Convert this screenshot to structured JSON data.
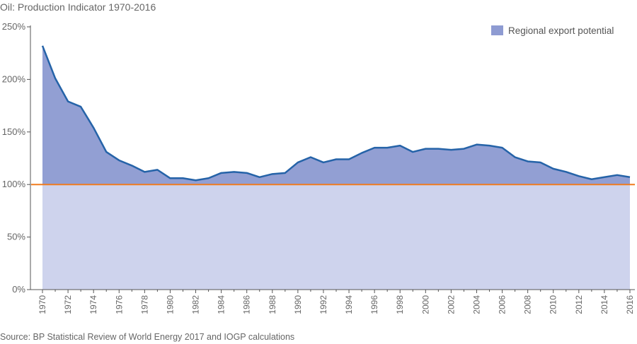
{
  "header": {
    "title": "Oil: Production Indicator 1970-2016"
  },
  "footer": {
    "source": "Source: BP Statistical Review of World Energy 2017 and IOGP calculations"
  },
  "colors": {
    "area_fill": "#929fd3",
    "base_fill": "#ced3ed",
    "line": "#2563a8",
    "threshold": "#f07c1e",
    "axis": "#555555",
    "legend_swatch": "#8e9bd2"
  },
  "chart_data": {
    "type": "area",
    "title": "Oil: Production Indicator 1970-2016",
    "xlabel": "",
    "ylabel": "",
    "x": [
      1970,
      1971,
      1972,
      1973,
      1974,
      1975,
      1976,
      1977,
      1978,
      1979,
      1980,
      1981,
      1982,
      1983,
      1984,
      1985,
      1986,
      1987,
      1988,
      1989,
      1990,
      1991,
      1992,
      1993,
      1994,
      1995,
      1996,
      1997,
      1998,
      1999,
      2000,
      2001,
      2002,
      2003,
      2004,
      2005,
      2006,
      2007,
      2008,
      2009,
      2010,
      2011,
      2012,
      2013,
      2014,
      2015,
      2016
    ],
    "series": [
      {
        "name": "Regional export potential",
        "values": [
          232,
          201,
          179,
          174,
          154,
          131,
          123,
          118,
          112,
          114,
          106,
          106,
          104,
          106,
          111,
          112,
          111,
          107,
          110,
          111,
          121,
          126,
          121,
          124,
          124,
          130,
          135,
          135,
          137,
          131,
          134,
          134,
          133,
          134,
          138,
          137,
          135,
          126,
          122,
          121,
          115,
          112,
          108,
          105,
          107,
          109,
          107
        ]
      }
    ],
    "reference_line": 100,
    "ylim": [
      0,
      250
    ],
    "yticks": [
      0,
      50,
      100,
      150,
      200,
      250
    ],
    "ytick_labels": [
      "0%",
      "50%",
      "100%",
      "150%",
      "200%",
      "250%"
    ],
    "xtick_labels": [
      "1970",
      "1972",
      "1974",
      "1976",
      "1978",
      "1980",
      "1982",
      "1984",
      "1986",
      "1988",
      "1990",
      "1992",
      "1994",
      "1996",
      "1998",
      "2000",
      "2002",
      "2004",
      "2006",
      "2008",
      "2010",
      "2012",
      "2014",
      "2016"
    ],
    "grid": false,
    "legend": {
      "position": "top-right",
      "label": "Regional export potential"
    }
  }
}
